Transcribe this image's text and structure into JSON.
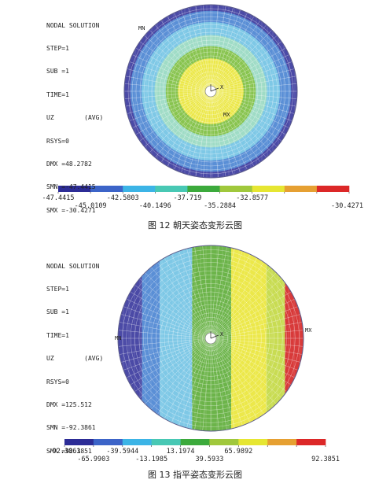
{
  "figures": [
    {
      "header": [
        "NODAL SOLUTION",
        "STEP=1",
        "SUB =1",
        "TIME=1",
        "UZ",
        "RSYS=0",
        "DMX =48.2782",
        "SMN =-47.4415",
        "SMX =-30.4271"
      ],
      "avg_label": "(AVG)",
      "pattern": "radial",
      "colors": [
        "#4b4aa6",
        "#5a8fd6",
        "#7ec8e6",
        "#9fdcc6",
        "#88c44f",
        "#c8dc52",
        "#ece84a",
        "#e07a3a",
        "#d83a3a"
      ],
      "bar_colors": [
        "#2c2c96",
        "#3c64c8",
        "#3cb4e6",
        "#48c8b4",
        "#3caa3c",
        "#a0c83c",
        "#e6e632",
        "#e6a032",
        "#dc2828"
      ],
      "ticks_top": [
        "-47.4415",
        "-42.5803",
        "-37.719",
        "-32.8577"
      ],
      "ticks_bottom": [
        "-45.0109",
        "-40.1496",
        "-35.2884",
        "-30.4271"
      ],
      "mn_label": "MN",
      "mx_label": "MX",
      "axis_label": "X",
      "caption": "图 12 朝天姿态变形云图"
    },
    {
      "header": [
        "NODAL SOLUTION",
        "STEP=1",
        "SUB =1",
        "TIME=1",
        "UZ",
        "RSYS=0",
        "DMX =125.512",
        "SMN =-92.3861",
        "SMX =92.3851"
      ],
      "avg_label": "(AVG)",
      "pattern": "horizontal",
      "colors": [
        "#4b4aa6",
        "#5a8fd6",
        "#7ec8e6",
        "#9fdcc6",
        "#6cb44a",
        "#c8dc52",
        "#ece84a",
        "#e07a3a",
        "#d83a3a"
      ],
      "bar_colors": [
        "#2c2c96",
        "#3c64c8",
        "#3cb4e6",
        "#48c8b4",
        "#3caa3c",
        "#a0c83c",
        "#e6e632",
        "#e6a032",
        "#dc2828"
      ],
      "ticks_top": [
        "-92.3861",
        "-39.5944",
        "13.1974",
        "65.9892"
      ],
      "ticks_bottom": [
        "-65.9903",
        "-13.1985",
        "39.5933",
        "92.3851"
      ],
      "mn_label": "MN",
      "mx_label": "MX",
      "axis_label": "X",
      "caption": "图 13 指平姿态变形云图"
    }
  ]
}
